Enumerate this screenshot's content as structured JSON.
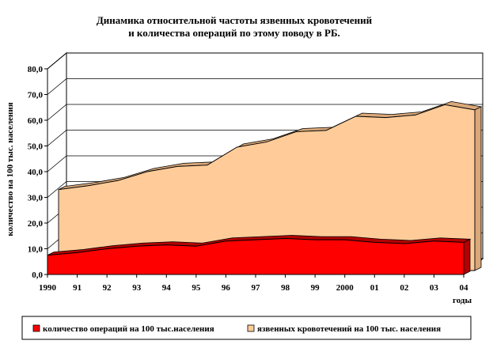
{
  "chart_data": {
    "type": "area",
    "title_lines": [
      "Динамика относительной частоты язвенных кровотечений",
      "и количества операций по этому поводу в РБ."
    ],
    "ylabel": "количество на 100 тыс. населения",
    "xlabel": "годы",
    "ylim": [
      0,
      80
    ],
    "yticks": [
      "0,0",
      "10,0",
      "20,0",
      "30,0",
      "40,0",
      "50,0",
      "60,0",
      "70,0",
      "80,0"
    ],
    "categories": [
      "1990",
      "91",
      "92",
      "93",
      "94",
      "95",
      "96",
      "97",
      "98",
      "99",
      "2000",
      "01",
      "02",
      "03",
      "04"
    ],
    "series": [
      {
        "name": "язвенных кровотечений на 100 тыс. населения",
        "color": "#ffcc99",
        "values": [
          31.5,
          33,
          35,
          38.5,
          40.5,
          41,
          48,
          50,
          54,
          54.5,
          60,
          59.5,
          60.5,
          64.5,
          62.5
        ]
      },
      {
        "name": "количество операций на 100 тыс.населения",
        "color": "#ff0000",
        "values": [
          7.5,
          8.5,
          10,
          11,
          11.5,
          11,
          13,
          13.5,
          14,
          13.5,
          13.5,
          12.5,
          12,
          13,
          12.5
        ]
      }
    ],
    "legend": {
      "position": "bottom",
      "items": [
        "количество операций на 100 тыс.населения",
        "язвенных кровотечений на 100 тыс. населения"
      ]
    },
    "grid": true,
    "style": "3d-area"
  }
}
